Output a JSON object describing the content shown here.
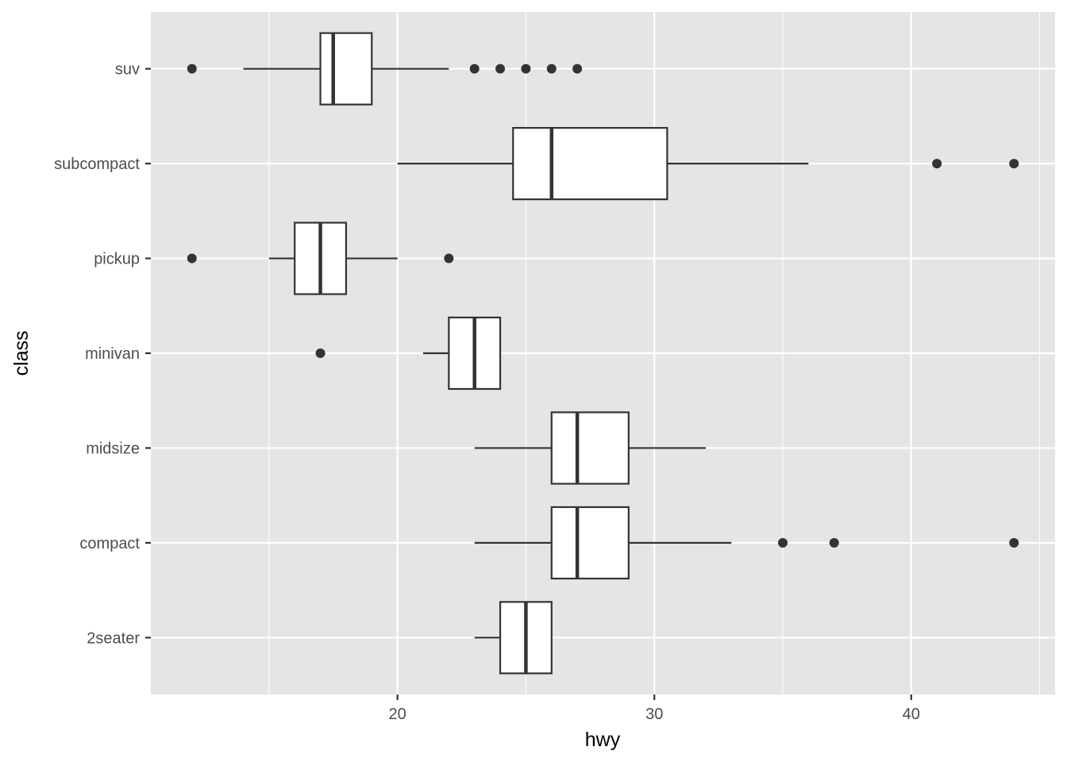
{
  "chart_data": {
    "type": "boxplot",
    "orientation": "horizontal",
    "xlabel": "hwy",
    "ylabel": "class",
    "xlim": [
      10.4,
      45.6
    ],
    "x_ticks": [
      20,
      30,
      40
    ],
    "x_minor_ticks": [
      15,
      25,
      35,
      45
    ],
    "grid": true,
    "categories": [
      "2seater",
      "compact",
      "midsize",
      "minivan",
      "pickup",
      "subcompact",
      "suv"
    ],
    "boxes": [
      {
        "category": "2seater",
        "whisker_low": 23,
        "q1": 24,
        "median": 25,
        "q3": 26,
        "whisker_high": 26,
        "outliers": []
      },
      {
        "category": "compact",
        "whisker_low": 23,
        "q1": 26,
        "median": 27,
        "q3": 29,
        "whisker_high": 33,
        "outliers": [
          35,
          37,
          44
        ]
      },
      {
        "category": "midsize",
        "whisker_low": 23,
        "q1": 26,
        "median": 27,
        "q3": 29,
        "whisker_high": 32,
        "outliers": []
      },
      {
        "category": "minivan",
        "whisker_low": 21,
        "q1": 22,
        "median": 23,
        "q3": 24,
        "whisker_high": 24,
        "outliers": [
          17
        ]
      },
      {
        "category": "pickup",
        "whisker_low": 15,
        "q1": 16,
        "median": 17,
        "q3": 18,
        "whisker_high": 20,
        "outliers": [
          12,
          22
        ]
      },
      {
        "category": "subcompact",
        "whisker_low": 20,
        "q1": 24.5,
        "median": 26,
        "q3": 30.5,
        "whisker_high": 36,
        "outliers": [
          41,
          44
        ]
      },
      {
        "category": "suv",
        "whisker_low": 14,
        "q1": 17,
        "median": 17.5,
        "q3": 19,
        "whisker_high": 22,
        "outliers": [
          12,
          23,
          24,
          25,
          26,
          27
        ]
      }
    ],
    "colors": {
      "panel": "#e5e5e5",
      "grid": "#ffffff",
      "box_fill": "#ffffff",
      "box_stroke": "#333333",
      "outlier": "#333333",
      "tick_text": "#4d4d4d",
      "axis_title": "#000000"
    }
  }
}
